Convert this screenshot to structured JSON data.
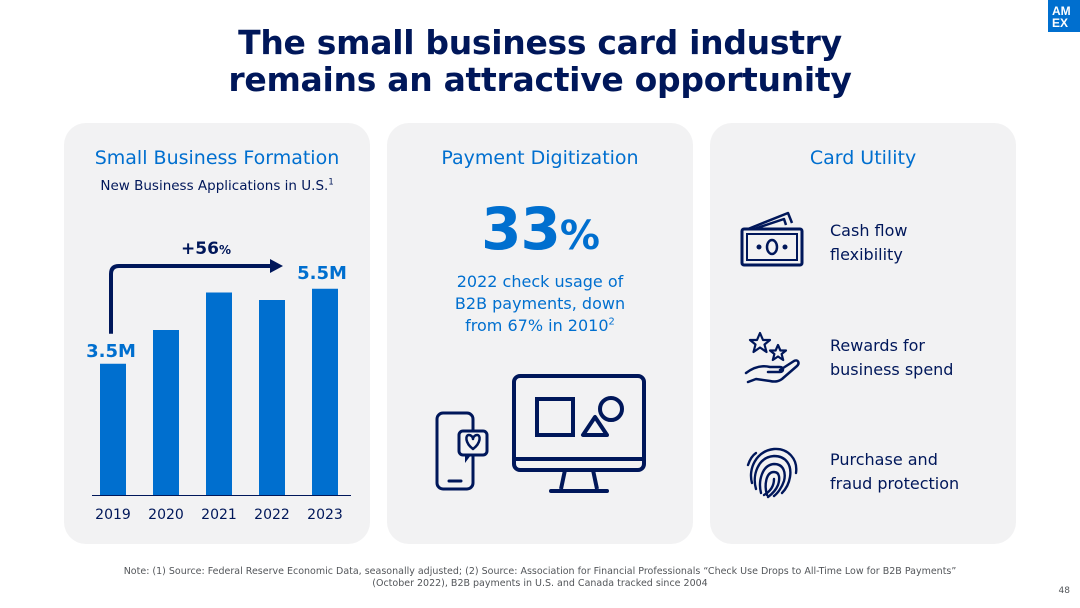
{
  "slide": {
    "title_lines": [
      "The small business card industry",
      "remains an attractive opportunity"
    ],
    "logo_lines": [
      "AM",
      "EX"
    ],
    "page_number": "48"
  },
  "panels": {
    "formation": {
      "title": "Small Business Formation",
      "subtitle": "New Business Applications in U.S.",
      "subtitle_sup": "1",
      "growth_label": "+56",
      "growth_pct_sign": "%",
      "start_label": "3.5M",
      "end_label": "5.5M"
    },
    "digitization": {
      "title": "Payment Digitization",
      "stat_value": "33",
      "stat_unit": "%",
      "desc_lines": [
        "2022 check usage of",
        "B2B payments, down",
        "from 67% in 2010"
      ],
      "desc_sup": "2",
      "illustration_icons": [
        "smartphone-heart-icon",
        "monitor-shapes-icon"
      ]
    },
    "utility": {
      "title": "Card Utility",
      "items": [
        {
          "icon": "cash-icon",
          "line1": "Cash flow",
          "line2": "flexibility"
        },
        {
          "icon": "stars-hand-icon",
          "line1": "Rewards for",
          "line2": "business spend"
        },
        {
          "icon": "fingerprint-icon",
          "line1": "Purchase and",
          "line2": "fraud protection"
        }
      ]
    }
  },
  "chart_data": {
    "type": "bar",
    "title": "New Business Applications in U.S.",
    "categories": [
      "2019",
      "2020",
      "2021",
      "2022",
      "2023"
    ],
    "values": [
      3.5,
      4.4,
      5.4,
      5.2,
      5.5
    ],
    "unit": "M",
    "ylim": [
      0,
      6.4
    ],
    "annotations": [
      "3.5M",
      "5.5M",
      "+56%"
    ],
    "grid": false,
    "bar_color": "#006fcf"
  },
  "colors": {
    "navy": "#00175a",
    "brand_blue": "#006fcf",
    "panel_bg": "#f2f2f3"
  },
  "footnote": {
    "lines": [
      "Note: (1) Source: Federal Reserve Economic Data, seasonally adjusted; (2) Source: Association for Financial Professionals “Check Use Drops to All-Time Low for B2B Payments”",
      "(October 2022), B2B payments in U.S. and Canada tracked since 2004"
    ]
  }
}
